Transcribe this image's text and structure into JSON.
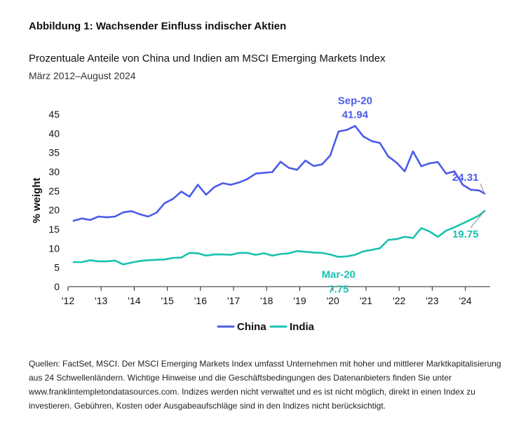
{
  "figure_title": "Abbildung 1: Wachsender Einfluss indischer Aktien",
  "sources": "Quellen: FactSet, MSCI. Der MSCI Emerging Markets Index umfasst Unternehmen mit hoher und mittlerer Marktkapitalisierung aus 24 Schwellenländern. Wichtige Hinweise und die Geschäftsbedingungen des Datenanbieters finden Sie unter www.franklintempletondatasources.com. Indizes werden nicht verwaltet und es ist nicht möglich, direkt in einen Index zu investieren. Gebühren, Kosten oder Ausgabeaufschläge sind in den Indizes nicht berücksichtigt.",
  "chart_data": {
    "type": "line",
    "title": "Prozentuale Anteile von China und Indien am MSCI Emerging Markets Index",
    "subtitle": "März 2012–August 2024",
    "xlabel": "",
    "ylabel": "% weight",
    "ylim": [
      0,
      45
    ],
    "yticks": [
      0,
      5,
      10,
      15,
      20,
      25,
      30,
      35,
      40,
      45
    ],
    "xlim": [
      2012.0,
      2024.75
    ],
    "xticks": [
      {
        "value": 2012,
        "label": "'12"
      },
      {
        "value": 2013,
        "label": "'13"
      },
      {
        "value": 2014,
        "label": "'14"
      },
      {
        "value": 2015,
        "label": "'15"
      },
      {
        "value": 2016,
        "label": "'16"
      },
      {
        "value": 2017,
        "label": "'17"
      },
      {
        "value": 2018,
        "label": "'18"
      },
      {
        "value": 2019,
        "label": "'19"
      },
      {
        "value": 2020,
        "label": "'20"
      },
      {
        "value": 2021,
        "label": "'21"
      },
      {
        "value": 2022,
        "label": "'22"
      },
      {
        "value": 2023,
        "label": "'23"
      },
      {
        "value": 2024,
        "label": "'24"
      }
    ],
    "grid": false,
    "legend": "bottom-center",
    "colors": {
      "China": "#4b5be8",
      "India": "#19c2b0"
    },
    "x": [
      2012.17,
      2012.42,
      2012.67,
      2012.92,
      2013.17,
      2013.42,
      2013.67,
      2013.92,
      2014.17,
      2014.42,
      2014.67,
      2014.92,
      2015.17,
      2015.42,
      2015.67,
      2015.92,
      2016.17,
      2016.42,
      2016.67,
      2016.92,
      2017.17,
      2017.42,
      2017.67,
      2017.92,
      2018.17,
      2018.42,
      2018.67,
      2018.92,
      2019.17,
      2019.42,
      2019.67,
      2019.92,
      2020.17,
      2020.42,
      2020.67,
      2020.92,
      2021.17,
      2021.42,
      2021.67,
      2021.92,
      2022.17,
      2022.42,
      2022.67,
      2022.92,
      2023.17,
      2023.42,
      2023.67,
      2023.92,
      2024.17,
      2024.42,
      2024.58
    ],
    "series": [
      {
        "name": "China",
        "values": [
          17.2,
          17.8,
          17.4,
          18.3,
          18.1,
          18.3,
          19.4,
          19.7,
          18.9,
          18.3,
          19.3,
          21.8,
          22.9,
          24.8,
          23.5,
          26.6,
          24.0,
          26.0,
          27.0,
          26.6,
          27.2,
          28.1,
          29.5,
          29.7,
          29.9,
          32.6,
          31.0,
          30.5,
          32.9,
          31.5,
          31.9,
          34.2,
          40.5,
          40.9,
          41.94,
          39.2,
          38.0,
          37.5,
          34.0,
          32.4,
          30.1,
          35.3,
          31.4,
          32.2,
          32.5,
          29.5,
          30.1,
          26.6,
          25.3,
          25.1,
          24.31
        ]
      },
      {
        "name": "India",
        "values": [
          6.4,
          6.4,
          6.9,
          6.6,
          6.6,
          6.8,
          5.8,
          6.3,
          6.7,
          6.9,
          7.0,
          7.1,
          7.5,
          7.6,
          8.8,
          8.7,
          8.1,
          8.4,
          8.4,
          8.3,
          8.8,
          8.8,
          8.3,
          8.7,
          8.1,
          8.5,
          8.7,
          9.3,
          9.1,
          8.9,
          8.8,
          8.4,
          7.75,
          7.9,
          8.3,
          9.2,
          9.6,
          10.0,
          12.2,
          12.4,
          13.0,
          12.7,
          15.3,
          14.4,
          13.0,
          14.6,
          15.5,
          16.5,
          17.5,
          18.6,
          19.75
        ]
      }
    ],
    "annotations": [
      {
        "series": "China",
        "x": 2020.67,
        "label_top": "Sep-20",
        "label_bottom": "41.94"
      },
      {
        "series": "China",
        "x": 2024.58,
        "label_top": "",
        "label_bottom": "24.31"
      },
      {
        "series": "India",
        "x": 2020.17,
        "label_top": "Mar-20",
        "label_bottom": "7.75"
      },
      {
        "series": "India",
        "x": 2024.58,
        "label_top": "",
        "label_bottom": "19.75"
      }
    ]
  }
}
